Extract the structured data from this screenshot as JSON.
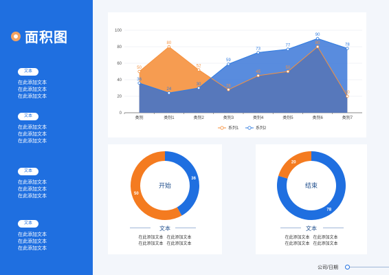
{
  "sidebar": {
    "title": "面积图",
    "blocks": [
      {
        "pill": "文本",
        "lines": [
          "在此添加文本",
          "在此添加文本",
          "在此添加文本"
        ]
      },
      {
        "pill": "文本",
        "lines": [
          "在此添加文本",
          "在此添加文本",
          "在此添加文本"
        ]
      },
      {
        "pill": "文本",
        "lines": [
          "在此添加文本",
          "在此添加文本",
          "在此添加文本"
        ]
      },
      {
        "pill": "文本",
        "lines": [
          "在此添加文本",
          "在此添加文本",
          "在此添加文本"
        ]
      }
    ]
  },
  "chart_data": [
    {
      "type": "area",
      "categories": [
        "类别",
        "类别1",
        "类别2",
        "类别3",
        "类别4",
        "类别5",
        "类别6",
        "类别7"
      ],
      "series": [
        {
          "name": "系列1",
          "values": [
            50,
            80,
            52,
            28,
            45,
            50,
            80,
            20
          ],
          "color": "#f5913e"
        },
        {
          "name": "系列2",
          "values": [
            36,
            24,
            30,
            59,
            73,
            77,
            90,
            78
          ],
          "color": "#2f7be0"
        }
      ],
      "ylim": [
        0,
        100
      ],
      "yticks": [
        0,
        20,
        40,
        60,
        80,
        100
      ],
      "grid": true,
      "legend": "bottom"
    },
    {
      "type": "pie",
      "donut": true,
      "center_label": "开始",
      "slices": [
        {
          "value": 36,
          "color": "#1f6fe0"
        },
        {
          "value": 50,
          "color": "#f47b20"
        }
      ]
    },
    {
      "type": "pie",
      "donut": true,
      "center_label": "结束",
      "slices": [
        {
          "value": 78,
          "color": "#1f6fe0"
        },
        {
          "value": 20,
          "color": "#f47b20"
        }
      ]
    }
  ],
  "captions": [
    {
      "title": "文本",
      "rows": [
        [
          "在此添加文本",
          "在此添加文本"
        ],
        [
          "在此添加文本",
          "在此添加文本"
        ]
      ]
    },
    {
      "title": "文本",
      "rows": [
        [
          "在此添加文本",
          "在此添加文本"
        ],
        [
          "在此添加文本",
          "在此添加文本"
        ]
      ]
    }
  ],
  "footer": {
    "text": "公司/日期"
  }
}
